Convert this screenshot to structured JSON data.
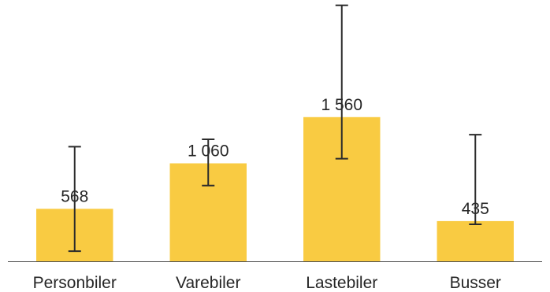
{
  "chart_data": {
    "type": "bar",
    "title": "",
    "xlabel": "",
    "ylabel": "",
    "categories": [
      "Personbiler",
      "Varebiler",
      "Lastebiler",
      "Busser"
    ],
    "values": [
      568,
      1060,
      1560,
      435
    ],
    "value_labels": [
      "568",
      "1 060",
      "1 560",
      "435"
    ],
    "error_bars": [
      {
        "low": 110,
        "high": 1240
      },
      {
        "low": 820,
        "high": 1320
      },
      {
        "low": 1110,
        "high": 2770
      },
      {
        "low": 400,
        "high": 1370
      }
    ],
    "ylim": [
      0,
      2810
    ],
    "grid": false,
    "legend": "none",
    "colors": {
      "bar": "#F9CB42",
      "error_bar": "#2b2b2b",
      "axis": "#4d4d4d",
      "text": "#262626"
    }
  }
}
